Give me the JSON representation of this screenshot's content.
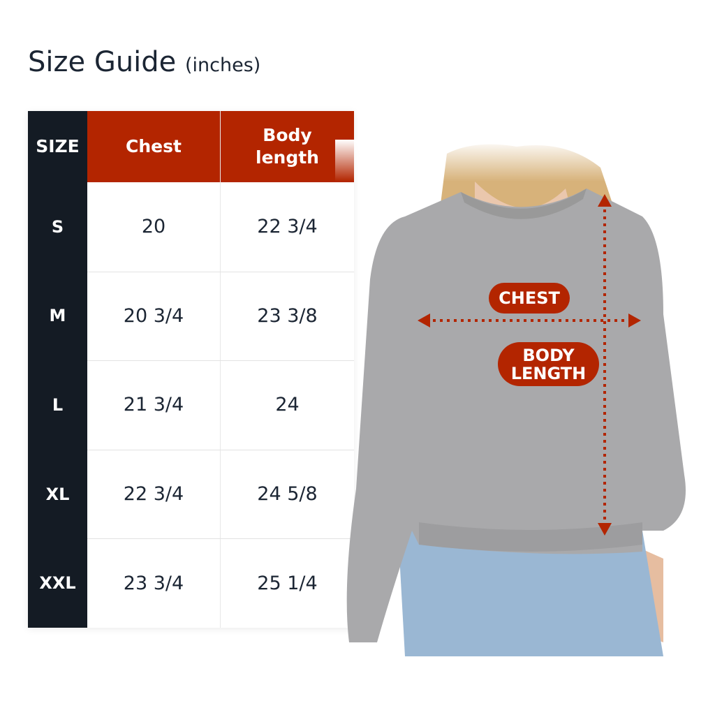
{
  "title": {
    "main": "Size Guide",
    "unit": "(inches)"
  },
  "table": {
    "headers": {
      "size": "SIZE",
      "chest": "Chest",
      "body_length_1": "Body",
      "body_length_2": "length"
    },
    "rows": [
      {
        "size": "S",
        "chest": "20",
        "body_length": "22 3/4"
      },
      {
        "size": "M",
        "chest": "20 3/4",
        "body_length": "23 3/8"
      },
      {
        "size": "L",
        "chest": "21 3/4",
        "body_length": "24"
      },
      {
        "size": "XL",
        "chest": "22 3/4",
        "body_length": "24 5/8"
      },
      {
        "size": "XXL",
        "chest": "23 3/4",
        "body_length": "25 1/4"
      }
    ]
  },
  "illustration": {
    "chest_label": "CHEST",
    "body_length_label_1": "BODY",
    "body_length_label_2": "LENGTH"
  },
  "colors": {
    "accent": "#b32500",
    "dark": "#141b24",
    "text": "#1b2533"
  }
}
